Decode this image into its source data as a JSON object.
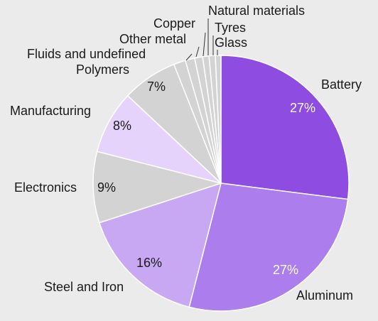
{
  "chart_data": {
    "type": "pie",
    "start_angle_deg": 0,
    "direction": "clockwise",
    "slices": [
      {
        "label": "Battery",
        "value": 27,
        "pct_label": "27%",
        "color": "#8e4ce0",
        "pct_color": "#ffffff"
      },
      {
        "label": "Aluminum",
        "value": 27,
        "pct_label": "27%",
        "color": "#ab7ded",
        "pct_color": "#ffffff"
      },
      {
        "label": "Steel and Iron",
        "value": 16,
        "pct_label": "16%",
        "color": "#c8a8f2",
        "pct_color": "#1a1a1a"
      },
      {
        "label": "Electronics",
        "value": 9,
        "pct_label": "9%",
        "color": "#d3d3d3",
        "pct_color": "#1a1a1a"
      },
      {
        "label": "Manufacturing",
        "value": 8,
        "pct_label": "8%",
        "color": "#e6d3fb",
        "pct_color": "#1a1a1a"
      },
      {
        "label": "Polymers",
        "value": 7,
        "pct_label": "7%",
        "color": "#d3d3d3",
        "pct_color": "#1a1a1a"
      },
      {
        "label": "Fluids and undefined",
        "value": 1.5,
        "pct_label": "",
        "color": "#d3d3d3",
        "pct_color": "#1a1a1a"
      },
      {
        "label": "Other metal",
        "value": 1.2,
        "pct_label": "",
        "color": "#d3d3d3",
        "pct_color": "#1a1a1a"
      },
      {
        "label": "Copper",
        "value": 1.0,
        "pct_label": "",
        "color": "#d3d3d3",
        "pct_color": "#1a1a1a"
      },
      {
        "label": "Natural materials",
        "value": 0.8,
        "pct_label": "",
        "color": "#d3d3d3",
        "pct_color": "#1a1a1a"
      },
      {
        "label": "Tyres",
        "value": 0.8,
        "pct_label": "",
        "color": "#d3d3d3",
        "pct_color": "#1a1a1a"
      },
      {
        "label": "Glass",
        "value": 0.7,
        "pct_label": "",
        "color": "#d3d3d3",
        "pct_color": "#1a1a1a"
      }
    ]
  }
}
